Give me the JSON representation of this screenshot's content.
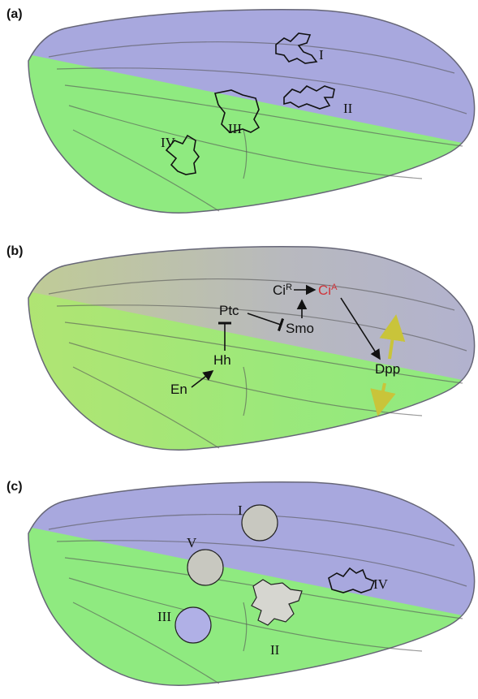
{
  "panels": [
    {
      "label": "(a)",
      "clones": [
        "I",
        "II",
        "III",
        "IV"
      ]
    },
    {
      "label": "(b)",
      "pathway": {
        "ci": "Ci",
        "ci_r": "R",
        "ci_a": "A",
        "ptc": "Ptc",
        "smo": "Smo",
        "hh": "Hh",
        "en": "En",
        "dpp": "Dpp"
      }
    },
    {
      "label": "(c)",
      "clones": [
        "I",
        "V",
        "III",
        "II",
        "IV"
      ]
    }
  ]
}
